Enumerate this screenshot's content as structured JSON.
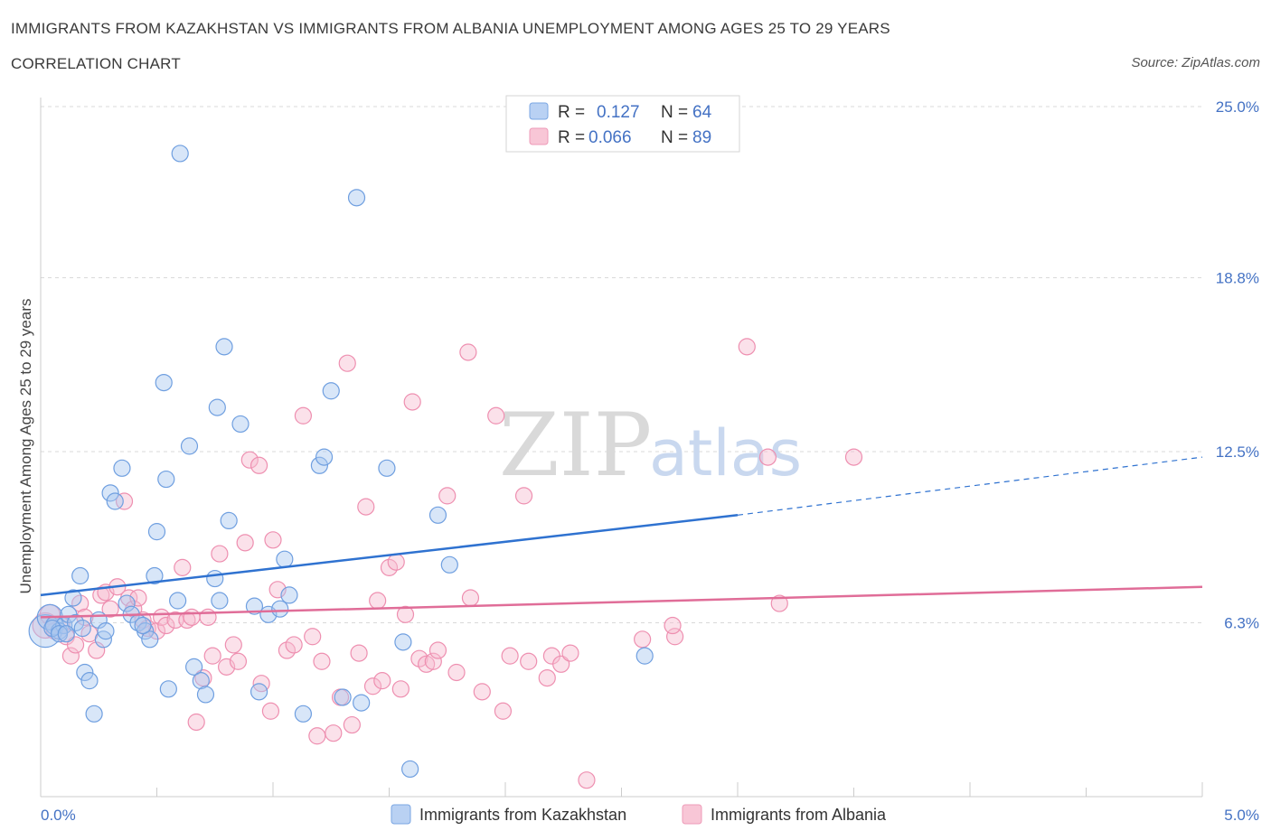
{
  "header": {
    "title": "IMMIGRANTS FROM KAZAKHSTAN VS IMMIGRANTS FROM ALBANIA UNEMPLOYMENT AMONG AGES 25 TO 29 YEARS",
    "subtitle": "CORRELATION CHART",
    "source": "Source: ZipAtlas.com"
  },
  "watermark": {
    "zip": "ZIP",
    "atlas": "atlas"
  },
  "legend": {
    "kazakhstan": {
      "r_label": "R =",
      "r_value": "0.127",
      "n_label": "N =",
      "n_value": "64"
    },
    "albania": {
      "r_label": "R =",
      "r_value": "0.066",
      "n_label": "N =",
      "n_value": "89"
    }
  },
  "colors": {
    "kazakhstan_fill": "#a9c7f0",
    "kazakhstan_stroke": "#6f9fe0",
    "kazakhstan_line": "#2f72d0",
    "albania_fill": "#f6bcd0",
    "albania_stroke": "#ee8fb0",
    "albania_line": "#e06d98",
    "tick_text": "#4472c4",
    "grid": "#d9d9d9"
  },
  "chart_data": {
    "type": "scatter",
    "xlabel": "",
    "ylabel": "Unemployment Among Ages 25 to 29 years",
    "xlim": [
      0,
      5
    ],
    "ylim": [
      0,
      25
    ],
    "x_ticks": [
      "0.0%",
      "5.0%"
    ],
    "y_ticks": [
      {
        "value": 6.3,
        "label": "6.3%"
      },
      {
        "value": 12.5,
        "label": "12.5%"
      },
      {
        "value": 18.8,
        "label": "18.8%"
      },
      {
        "value": 25.0,
        "label": "25.0%"
      }
    ],
    "grid": true,
    "legend_position": "top-center",
    "series": [
      {
        "name": "Immigrants from Kazakhstan",
        "trend": {
          "x0": 0.0,
          "y0": 7.3,
          "x1": 3.0,
          "y1": 10.2,
          "dashed_to_x": 5.0,
          "dashed_to_y": 12.3
        },
        "points": [
          [
            0.02,
            6.0,
            18
          ],
          [
            0.04,
            6.5,
            14
          ],
          [
            0.06,
            6.2,
            10
          ],
          [
            0.08,
            6.0,
            9
          ],
          [
            0.1,
            6.2,
            9
          ],
          [
            0.12,
            6.6,
            9
          ],
          [
            0.15,
            6.3,
            9
          ],
          [
            0.17,
            8.0,
            9
          ],
          [
            0.19,
            4.5,
            9
          ],
          [
            0.21,
            4.2,
            9
          ],
          [
            0.23,
            3.0,
            9
          ],
          [
            0.25,
            6.4,
            9
          ],
          [
            0.27,
            5.7,
            9
          ],
          [
            0.3,
            11.0,
            9
          ],
          [
            0.32,
            10.7,
            9
          ],
          [
            0.35,
            11.9,
            9
          ],
          [
            0.37,
            7.0,
            9
          ],
          [
            0.39,
            6.6,
            9
          ],
          [
            0.42,
            6.3,
            9
          ],
          [
            0.45,
            6.0,
            9
          ],
          [
            0.47,
            5.7,
            9
          ],
          [
            0.49,
            8.0,
            9
          ],
          [
            0.5,
            9.6,
            9
          ],
          [
            0.53,
            15.0,
            9
          ],
          [
            0.54,
            11.5,
            9
          ],
          [
            0.55,
            3.9,
            9
          ],
          [
            0.59,
            7.1,
            9
          ],
          [
            0.6,
            23.3,
            9
          ],
          [
            0.64,
            12.7,
            9
          ],
          [
            0.66,
            4.7,
            9
          ],
          [
            0.69,
            4.2,
            9
          ],
          [
            0.71,
            3.7,
            9
          ],
          [
            0.75,
            7.9,
            9
          ],
          [
            0.76,
            14.1,
            9
          ],
          [
            0.77,
            7.1,
            9
          ],
          [
            0.79,
            16.3,
            9
          ],
          [
            0.81,
            10.0,
            9
          ],
          [
            0.86,
            13.5,
            9
          ],
          [
            0.92,
            6.9,
            9
          ],
          [
            0.94,
            3.8,
            9
          ],
          [
            0.98,
            6.6,
            9
          ],
          [
            1.03,
            6.8,
            9
          ],
          [
            1.05,
            8.6,
            9
          ],
          [
            1.07,
            7.3,
            9
          ],
          [
            1.13,
            3.0,
            9
          ],
          [
            1.2,
            12.0,
            9
          ],
          [
            1.22,
            12.3,
            9
          ],
          [
            1.25,
            14.7,
            9
          ],
          [
            1.3,
            3.6,
            9
          ],
          [
            1.36,
            21.7,
            9
          ],
          [
            1.38,
            3.4,
            9
          ],
          [
            1.49,
            11.9,
            9
          ],
          [
            1.56,
            5.6,
            9
          ],
          [
            1.59,
            1.0,
            9
          ],
          [
            1.71,
            10.2,
            9
          ],
          [
            1.76,
            8.4,
            9
          ],
          [
            2.6,
            5.1,
            9
          ],
          [
            0.05,
            6.1,
            9
          ],
          [
            0.08,
            5.9,
            9
          ],
          [
            0.14,
            7.2,
            9
          ],
          [
            0.28,
            6.0,
            9
          ],
          [
            0.44,
            6.2,
            9
          ],
          [
            0.18,
            6.1,
            9
          ],
          [
            0.11,
            5.9,
            9
          ]
        ]
      },
      {
        "name": "Immigrants from Albania",
        "trend": {
          "x0": 0.0,
          "y0": 6.5,
          "x1": 5.0,
          "y1": 7.6
        },
        "points": [
          [
            0.02,
            6.2,
            14
          ],
          [
            0.04,
            6.6,
            11
          ],
          [
            0.06,
            6.0,
            9
          ],
          [
            0.09,
            6.2,
            9
          ],
          [
            0.11,
            5.8,
            9
          ],
          [
            0.13,
            5.1,
            9
          ],
          [
            0.15,
            5.5,
            9
          ],
          [
            0.17,
            7.0,
            9
          ],
          [
            0.19,
            6.5,
            9
          ],
          [
            0.21,
            5.9,
            9
          ],
          [
            0.24,
            5.3,
            9
          ],
          [
            0.26,
            7.3,
            9
          ],
          [
            0.28,
            7.4,
            9
          ],
          [
            0.3,
            6.8,
            9
          ],
          [
            0.33,
            7.6,
            9
          ],
          [
            0.36,
            10.7,
            9
          ],
          [
            0.38,
            7.2,
            9
          ],
          [
            0.4,
            6.8,
            9
          ],
          [
            0.42,
            7.2,
            9
          ],
          [
            0.44,
            6.4,
            9
          ],
          [
            0.46,
            6.1,
            9
          ],
          [
            0.5,
            6.0,
            9
          ],
          [
            0.52,
            6.5,
            9
          ],
          [
            0.54,
            6.2,
            9
          ],
          [
            0.58,
            6.4,
            9
          ],
          [
            0.61,
            8.3,
            9
          ],
          [
            0.63,
            6.4,
            9
          ],
          [
            0.65,
            6.5,
            9
          ],
          [
            0.67,
            2.7,
            9
          ],
          [
            0.7,
            4.3,
            9
          ],
          [
            0.72,
            6.5,
            9
          ],
          [
            0.74,
            5.1,
            9
          ],
          [
            0.77,
            8.8,
            9
          ],
          [
            0.8,
            4.7,
            9
          ],
          [
            0.83,
            5.5,
            9
          ],
          [
            0.85,
            4.9,
            9
          ],
          [
            0.88,
            9.2,
            9
          ],
          [
            0.9,
            12.2,
            9
          ],
          [
            0.94,
            12.0,
            9
          ],
          [
            0.95,
            4.1,
            9
          ],
          [
            0.99,
            3.1,
            9
          ],
          [
            1.0,
            9.3,
            9
          ],
          [
            1.02,
            7.5,
            9
          ],
          [
            1.06,
            5.3,
            9
          ],
          [
            1.09,
            5.5,
            9
          ],
          [
            1.13,
            13.8,
            9
          ],
          [
            1.17,
            5.8,
            9
          ],
          [
            1.19,
            2.2,
            9
          ],
          [
            1.21,
            4.9,
            9
          ],
          [
            1.26,
            2.3,
            9
          ],
          [
            1.29,
            3.6,
            9
          ],
          [
            1.32,
            15.7,
            9
          ],
          [
            1.34,
            2.6,
            9
          ],
          [
            1.37,
            5.2,
            9
          ],
          [
            1.4,
            10.5,
            9
          ],
          [
            1.43,
            4.0,
            9
          ],
          [
            1.45,
            7.1,
            9
          ],
          [
            1.47,
            4.2,
            9
          ],
          [
            1.5,
            8.3,
            9
          ],
          [
            1.53,
            8.5,
            9
          ],
          [
            1.55,
            3.9,
            9
          ],
          [
            1.57,
            6.6,
            9
          ],
          [
            1.6,
            14.3,
            9
          ],
          [
            1.63,
            5.0,
            9
          ],
          [
            1.66,
            4.8,
            9
          ],
          [
            1.69,
            4.9,
            9
          ],
          [
            1.71,
            5.3,
            9
          ],
          [
            1.75,
            10.9,
            9
          ],
          [
            1.79,
            4.5,
            9
          ],
          [
            1.84,
            16.1,
            9
          ],
          [
            1.85,
            7.2,
            9
          ],
          [
            1.9,
            3.8,
            9
          ],
          [
            1.96,
            13.8,
            9
          ],
          [
            1.99,
            3.1,
            9
          ],
          [
            2.02,
            5.1,
            9
          ],
          [
            2.08,
            10.9,
            9
          ],
          [
            2.1,
            4.9,
            9
          ],
          [
            2.18,
            4.3,
            9
          ],
          [
            2.2,
            5.1,
            9
          ],
          [
            2.24,
            4.8,
            9
          ],
          [
            2.28,
            5.2,
            9
          ],
          [
            2.35,
            0.6,
            9
          ],
          [
            2.59,
            5.7,
            9
          ],
          [
            2.73,
            5.8,
            9
          ],
          [
            2.72,
            6.2,
            9
          ],
          [
            3.04,
            16.3,
            9
          ],
          [
            3.13,
            12.3,
            9
          ],
          [
            3.18,
            7.0,
            9
          ],
          [
            3.5,
            12.3,
            9
          ]
        ]
      }
    ]
  },
  "bottom_legend": {
    "kazakhstan_label": "Immigrants from Kazakhstan",
    "albania_label": "Immigrants from Albania"
  }
}
